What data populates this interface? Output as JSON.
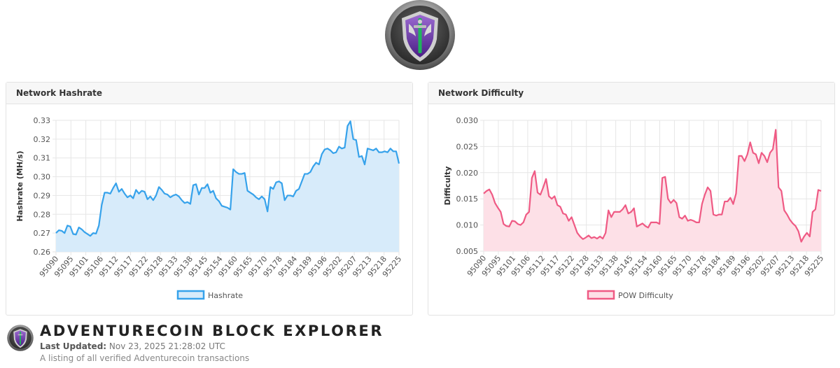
{
  "colors": {
    "hashrate_line": "#36a2eb",
    "hashrate_fill": "#d7ebfa",
    "difficulty_line": "#ef5a84",
    "difficulty_fill": "#fde0e7",
    "grid": "#e6e6e6"
  },
  "logo": {
    "icon": "shield-sword-icon"
  },
  "footer": {
    "site_title": "ADVENTURECOIN BLOCK EXPLORER",
    "last_updated_label": "Last Updated:",
    "last_updated_value": "Nov 23, 2025 21:28:02 UTC",
    "subtitle": "A listing of all verified Adventurecoin transactions"
  },
  "cards": {
    "hashrate": {
      "title": "Network Hashrate"
    },
    "difficulty": {
      "title": "Network Difficulty"
    }
  },
  "chart_data": [
    {
      "type": "area",
      "title": "Network Hashrate",
      "ylabel": "Hashrate (MH/s)",
      "xlabel": "",
      "ylim": [
        0.26,
        0.33
      ],
      "yticks": [
        0.26,
        0.27,
        0.28,
        0.29,
        0.3,
        0.31,
        0.32,
        0.33
      ],
      "ytick_labels": [
        "0.26",
        "0.27",
        "0.28",
        "0.29",
        "0.30",
        "0.31",
        "0.32",
        "0.33"
      ],
      "grid": true,
      "legend": "bottom",
      "x_tick_labels": [
        "95090",
        "95095",
        "95101",
        "95106",
        "95112",
        "95117",
        "95122",
        "95128",
        "95133",
        "95138",
        "95145",
        "95154",
        "95160",
        "95165",
        "95170",
        "95178",
        "95184",
        "95189",
        "95196",
        "95202",
        "95207",
        "95213",
        "95218",
        "95225"
      ],
      "series": [
        {
          "name": "Hashrate",
          "values": [
            0.27,
            0.2715,
            0.2712,
            0.27,
            0.274,
            0.2735,
            0.2695,
            0.2692,
            0.273,
            0.272,
            0.2705,
            0.2695,
            0.2685,
            0.27,
            0.2697,
            0.274,
            0.285,
            0.2915,
            0.2915,
            0.291,
            0.294,
            0.2965,
            0.292,
            0.2935,
            0.291,
            0.289,
            0.29,
            0.2885,
            0.293,
            0.291,
            0.2925,
            0.292,
            0.288,
            0.2895,
            0.2875,
            0.29,
            0.2945,
            0.293,
            0.291,
            0.2905,
            0.289,
            0.29,
            0.2905,
            0.2895,
            0.2875,
            0.286,
            0.2865,
            0.2855,
            0.2955,
            0.296,
            0.2905,
            0.294,
            0.294,
            0.296,
            0.2915,
            0.2925,
            0.2885,
            0.287,
            0.2845,
            0.284,
            0.2835,
            0.2825,
            0.304,
            0.3025,
            0.3015,
            0.3015,
            0.302,
            0.2925,
            0.2915,
            0.2905,
            0.289,
            0.288,
            0.2895,
            0.288,
            0.2815,
            0.2945,
            0.2935,
            0.297,
            0.2975,
            0.2965,
            0.2875,
            0.29,
            0.29,
            0.2895,
            0.2925,
            0.2935,
            0.2975,
            0.3015,
            0.3015,
            0.3025,
            0.3055,
            0.3075,
            0.3065,
            0.312,
            0.3145,
            0.315,
            0.314,
            0.3125,
            0.313,
            0.316,
            0.315,
            0.3155,
            0.327,
            0.3295,
            0.32,
            0.3195,
            0.3105,
            0.311,
            0.3065,
            0.315,
            0.3145,
            0.314,
            0.315,
            0.313,
            0.313,
            0.3135,
            0.313,
            0.315,
            0.3135,
            0.3135,
            0.307
          ]
        }
      ]
    },
    {
      "type": "area",
      "title": "Network Difficulty",
      "ylabel": "Difficulty",
      "xlabel": "",
      "ylim": [
        0.005,
        0.03
      ],
      "yticks": [
        0.005,
        0.01,
        0.015,
        0.02,
        0.025,
        0.03
      ],
      "ytick_labels": [
        "0.005",
        "0.010",
        "0.015",
        "0.020",
        "0.025",
        "0.030"
      ],
      "grid": true,
      "legend": "bottom",
      "x_tick_labels": [
        "95090",
        "95095",
        "95101",
        "95106",
        "95112",
        "95117",
        "95122",
        "95128",
        "95133",
        "95138",
        "95145",
        "95154",
        "95160",
        "95165",
        "95170",
        "95178",
        "95184",
        "95189",
        "95196",
        "95202",
        "95207",
        "95213",
        "95218",
        "95225"
      ],
      "series": [
        {
          "name": "POW Difficulty",
          "values": [
            0.016,
            0.0165,
            0.0168,
            0.0158,
            0.0142,
            0.0133,
            0.0125,
            0.0102,
            0.0098,
            0.0097,
            0.0108,
            0.0107,
            0.0102,
            0.01,
            0.0105,
            0.012,
            0.0125,
            0.019,
            0.0203,
            0.0162,
            0.0158,
            0.0172,
            0.0188,
            0.0155,
            0.015,
            0.0155,
            0.0138,
            0.0135,
            0.0122,
            0.012,
            0.0108,
            0.0115,
            0.01,
            0.0085,
            0.0078,
            0.0073,
            0.0076,
            0.008,
            0.0075,
            0.0077,
            0.0074,
            0.0078,
            0.0074,
            0.0085,
            0.0128,
            0.0115,
            0.0125,
            0.0125,
            0.0125,
            0.013,
            0.0138,
            0.0122,
            0.0125,
            0.0132,
            0.0097,
            0.01,
            0.0103,
            0.0098,
            0.0095,
            0.0105,
            0.0105,
            0.0105,
            0.0102,
            0.019,
            0.0192,
            0.015,
            0.0142,
            0.0148,
            0.0142,
            0.0115,
            0.0112,
            0.0118,
            0.0108,
            0.011,
            0.0108,
            0.0105,
            0.0105,
            0.014,
            0.0158,
            0.0172,
            0.0165,
            0.012,
            0.0118,
            0.012,
            0.012,
            0.0145,
            0.0145,
            0.0152,
            0.014,
            0.016,
            0.0232,
            0.0232,
            0.0222,
            0.0235,
            0.0258,
            0.0238,
            0.0235,
            0.0218,
            0.0238,
            0.0232,
            0.022,
            0.0238,
            0.0245,
            0.0282,
            0.0172,
            0.0165,
            0.0128,
            0.012,
            0.011,
            0.0103,
            0.0098,
            0.0088,
            0.0068,
            0.0078,
            0.0085,
            0.0078,
            0.0125,
            0.013,
            0.0167,
            0.0165
          ]
        }
      ]
    }
  ]
}
